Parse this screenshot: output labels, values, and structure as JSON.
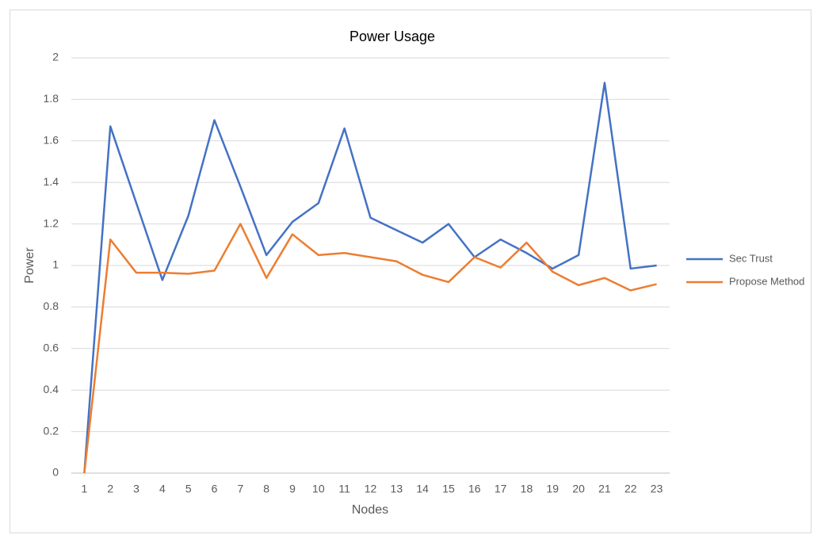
{
  "chart_data": {
    "type": "line",
    "title": "Power Usage",
    "x_label": "Nodes",
    "y_label": "Power",
    "categories": [
      "1",
      "2",
      "3",
      "4",
      "5",
      "6",
      "7",
      "8",
      "9",
      "10",
      "11",
      "12",
      "13",
      "14",
      "15",
      "16",
      "17",
      "18",
      "19",
      "20",
      "21",
      "22",
      "23"
    ],
    "series": [
      {
        "name": "Sec Trust",
        "color": "#4472c4",
        "values": [
          0,
          1.67,
          1.3,
          0.93,
          1.24,
          1.7,
          1.38,
          1.05,
          1.21,
          1.3,
          1.66,
          1.23,
          1.17,
          1.11,
          1.2,
          1.04,
          1.125,
          1.06,
          0.985,
          1.05,
          1.88,
          0.985,
          1.0
        ]
      },
      {
        "name": "Propose Method",
        "color": "#ed7d31",
        "values": [
          0,
          1.125,
          0.965,
          0.965,
          0.96,
          0.975,
          1.2,
          0.94,
          1.15,
          1.05,
          1.06,
          1.04,
          1.02,
          0.955,
          0.92,
          1.04,
          0.99,
          1.11,
          0.97,
          0.905,
          0.94,
          0.88,
          0.91
        ]
      }
    ],
    "ylim": [
      0,
      2
    ],
    "yticks": [
      0,
      0.2,
      0.4,
      0.6,
      0.8,
      1,
      1.2,
      1.4,
      1.6,
      1.8,
      2
    ],
    "grid": true,
    "legend": "right"
  }
}
